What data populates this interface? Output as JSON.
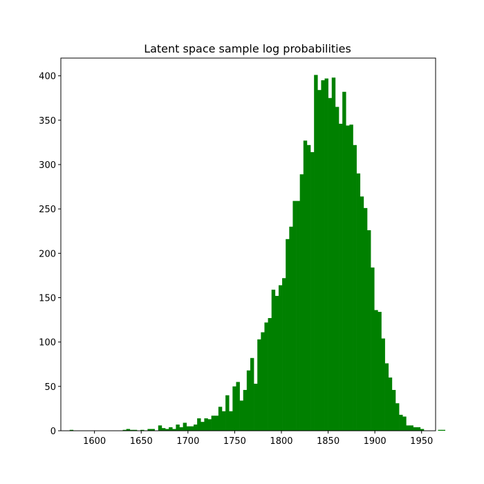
{
  "chart_data": {
    "type": "bar",
    "title": "Latent space sample log probabilities",
    "xlabel": "",
    "ylabel": "",
    "bar_color": "#008000",
    "xlim": [
      1564,
      1965
    ],
    "ylim": [
      0,
      420
    ],
    "xticks": [
      1600,
      1650,
      1700,
      1750,
      1800,
      1850,
      1900,
      1950
    ],
    "yticks": [
      0,
      50,
      100,
      150,
      200,
      250,
      300,
      350,
      400
    ],
    "bin_edges_start": 1573.4,
    "bin_width": 3.79,
    "values": [
      1,
      0,
      0,
      0,
      0,
      0,
      0,
      0,
      0,
      0,
      0,
      0,
      0,
      0,
      0,
      1,
      2,
      1,
      1,
      0,
      1,
      0,
      2,
      2,
      0,
      6,
      3,
      2,
      4,
      2,
      7,
      4,
      9,
      5,
      5,
      7,
      14,
      10,
      14,
      13,
      17,
      17,
      27,
      22,
      40,
      22,
      50,
      55,
      34,
      46,
      68,
      82,
      53,
      103,
      111,
      122,
      127,
      159,
      152,
      164,
      172,
      216,
      230,
      259,
      259,
      289,
      327,
      322,
      314,
      401,
      384,
      395,
      397,
      375,
      398,
      365,
      346,
      382,
      344,
      345,
      322,
      290,
      264,
      251,
      226,
      184,
      136,
      134,
      104,
      76,
      60,
      46,
      31,
      18,
      16,
      6,
      6,
      4,
      4,
      2,
      0,
      0,
      0,
      0,
      1,
      1,
      0,
      0,
      0
    ]
  }
}
